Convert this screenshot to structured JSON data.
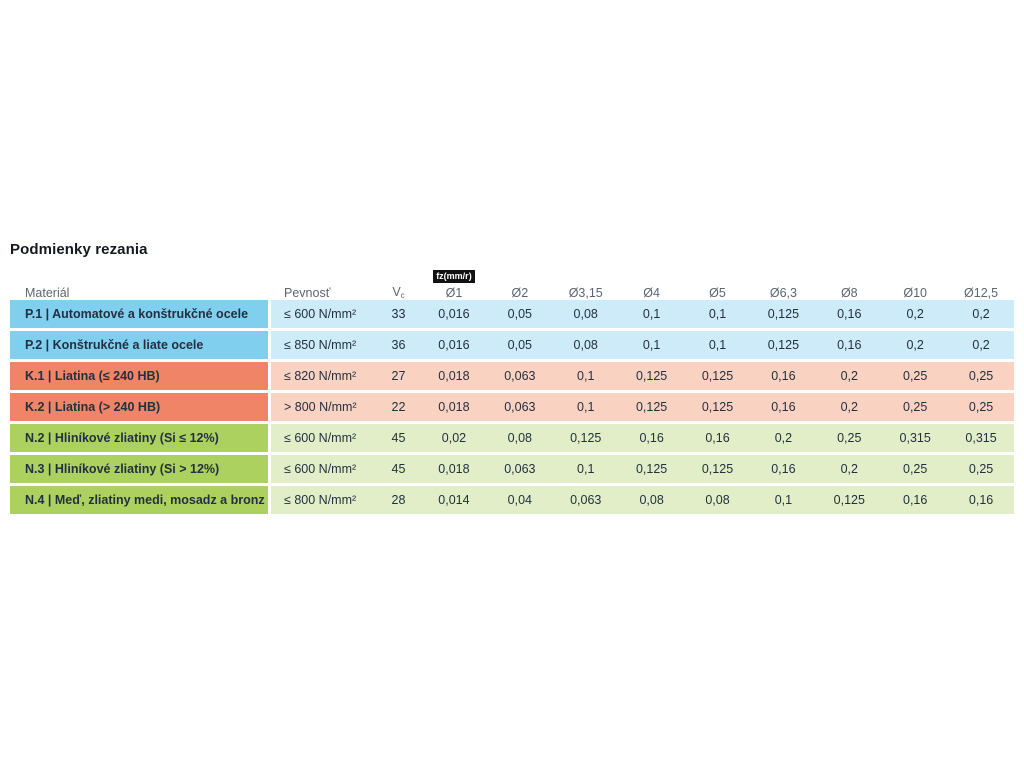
{
  "chart_data": {
    "type": "table",
    "title": "Podmienky rezania",
    "columns": [
      "Materiál",
      "Pevnosť",
      "Vc",
      "Ø1",
      "Ø2",
      "Ø3,15",
      "Ø4",
      "Ø5",
      "Ø6,3",
      "Ø8",
      "Ø10",
      "Ø12,5"
    ],
    "fz_unit_badge": "fz(mm/r)",
    "rows": [
      {
        "group": "P",
        "material": "P.1 | Automatové a konštrukčné ocele",
        "strength": "≤ 600 N/mm²",
        "vc": "33",
        "fz": [
          "0,016",
          "0,05",
          "0,08",
          "0,1",
          "0,1",
          "0,125",
          "0,16",
          "0,2",
          "0,2"
        ]
      },
      {
        "group": "P",
        "material": "P.2 | Konštrukčné a liate ocele",
        "strength": "≤ 850 N/mm²",
        "vc": "36",
        "fz": [
          "0,016",
          "0,05",
          "0,08",
          "0,1",
          "0,1",
          "0,125",
          "0,16",
          "0,2",
          "0,2"
        ]
      },
      {
        "group": "K",
        "material": "K.1 | Liatina (≤ 240 HB)",
        "strength": "≤ 820 N/mm²",
        "vc": "27",
        "fz": [
          "0,018",
          "0,063",
          "0,1",
          "0,125",
          "0,125",
          "0,16",
          "0,2",
          "0,25",
          "0,25"
        ]
      },
      {
        "group": "K",
        "material": "K.2 | Liatina (> 240 HB)",
        "strength": "> 800 N/mm²",
        "vc": "22",
        "fz": [
          "0,018",
          "0,063",
          "0,1",
          "0,125",
          "0,125",
          "0,16",
          "0,2",
          "0,25",
          "0,25"
        ]
      },
      {
        "group": "N",
        "material": "N.2 | Hliníkové zliatiny (Si ≤ 12%)",
        "strength": "≤ 600 N/mm²",
        "vc": "45",
        "fz": [
          "0,02",
          "0,08",
          "0,125",
          "0,16",
          "0,16",
          "0,2",
          "0,25",
          "0,315",
          "0,315"
        ]
      },
      {
        "group": "N",
        "material": "N.3 | Hliníkové zliatiny (Si > 12%)",
        "strength": "≤ 600 N/mm²",
        "vc": "45",
        "fz": [
          "0,018",
          "0,063",
          "0,1",
          "0,125",
          "0,125",
          "0,16",
          "0,2",
          "0,25",
          "0,25"
        ]
      },
      {
        "group": "N",
        "material": "N.4 | Meď, zliatiny medi, mosadz a bronz",
        "strength": "≤ 800 N/mm²",
        "vc": "28",
        "fz": [
          "0,014",
          "0,04",
          "0,063",
          "0,08",
          "0,08",
          "0,1",
          "0,125",
          "0,16",
          "0,16"
        ]
      }
    ]
  },
  "header": {
    "material": "Materiál",
    "strength": "Pevnosť",
    "vc_base": "V",
    "vc_sub": "c",
    "fz_badge": "fz(mm/r)",
    "diameters": [
      "Ø1",
      "Ø2",
      "Ø3,15",
      "Ø4",
      "Ø5",
      "Ø6,3",
      "Ø8",
      "Ø10",
      "Ø12,5"
    ]
  },
  "style": {
    "group_colors": {
      "P": {
        "dark": "#80cfee",
        "light": "#cdebf8"
      },
      "K": {
        "dark": "#ef8466",
        "light": "#f9d2c2"
      },
      "N": {
        "dark": "#acd15e",
        "light": "#e2eec7"
      }
    },
    "text_color": "#243040",
    "header_text_color": "#5c6771",
    "badge_bg": "#121212",
    "badge_text": "#ffffff"
  }
}
